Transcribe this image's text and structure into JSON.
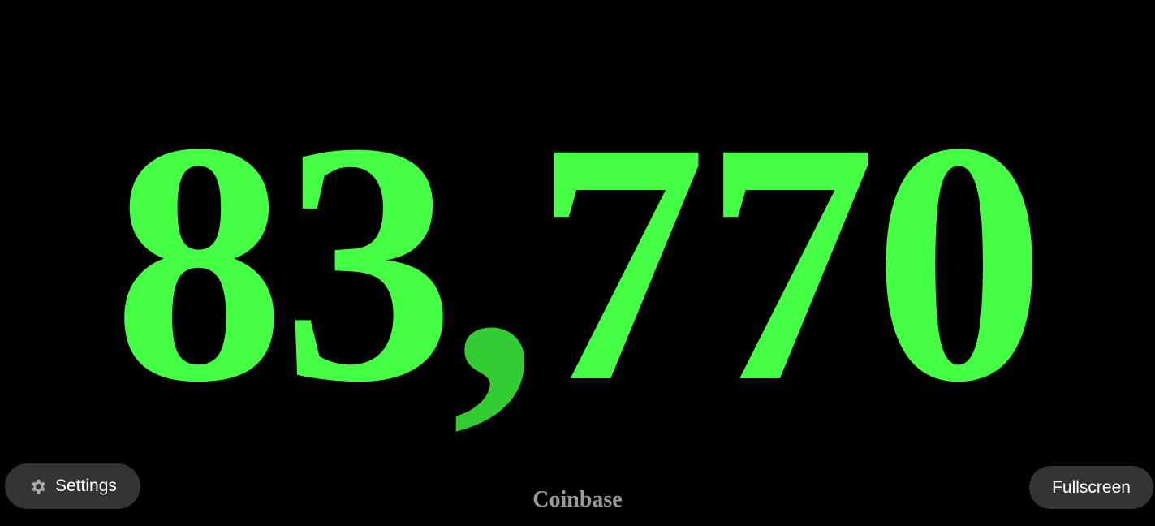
{
  "price": {
    "lead": "83",
    "separator": ",",
    "rest": "770"
  },
  "buttons": {
    "settings": "Settings",
    "fullscreen": "Fullscreen"
  },
  "source": "Coinbase"
}
